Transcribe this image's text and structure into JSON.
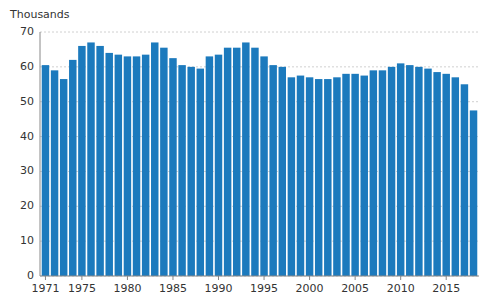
{
  "chart_data": {
    "type": "bar",
    "ylabel": "Thousands",
    "x": [
      1971,
      1972,
      1973,
      1974,
      1975,
      1976,
      1977,
      1978,
      1979,
      1980,
      1981,
      1982,
      1983,
      1984,
      1985,
      1986,
      1987,
      1988,
      1989,
      1990,
      1991,
      1992,
      1993,
      1994,
      1995,
      1996,
      1997,
      1998,
      1999,
      2000,
      2001,
      2002,
      2003,
      2004,
      2005,
      2006,
      2007,
      2008,
      2009,
      2010,
      2011,
      2012,
      2013,
      2014,
      2015,
      2016,
      2017,
      2018
    ],
    "values": [
      60.5,
      59.0,
      56.5,
      62.0,
      66.0,
      67.0,
      66.0,
      64.0,
      63.5,
      63.0,
      63.0,
      63.5,
      67.0,
      65.5,
      62.5,
      60.5,
      60.0,
      59.5,
      63.0,
      63.5,
      65.5,
      65.5,
      67.0,
      65.5,
      63.0,
      60.5,
      60.0,
      57.0,
      57.5,
      57.0,
      56.5,
      56.5,
      57.0,
      58.0,
      58.0,
      57.5,
      59.0,
      59.0,
      60.0,
      61.0,
      60.5,
      60.0,
      59.5,
      58.5,
      58.0,
      57.0,
      55.0,
      47.5
    ],
    "color": "#1c7abd",
    "xlim": [
      1970.4,
      2018.6
    ],
    "xticks": [
      1971,
      1975,
      1980,
      1985,
      1990,
      1995,
      2000,
      2005,
      2010,
      2015
    ],
    "ylim": [
      0,
      70
    ],
    "yticks": [
      0,
      10,
      20,
      30,
      40,
      50,
      60,
      70
    ],
    "grid": true
  }
}
